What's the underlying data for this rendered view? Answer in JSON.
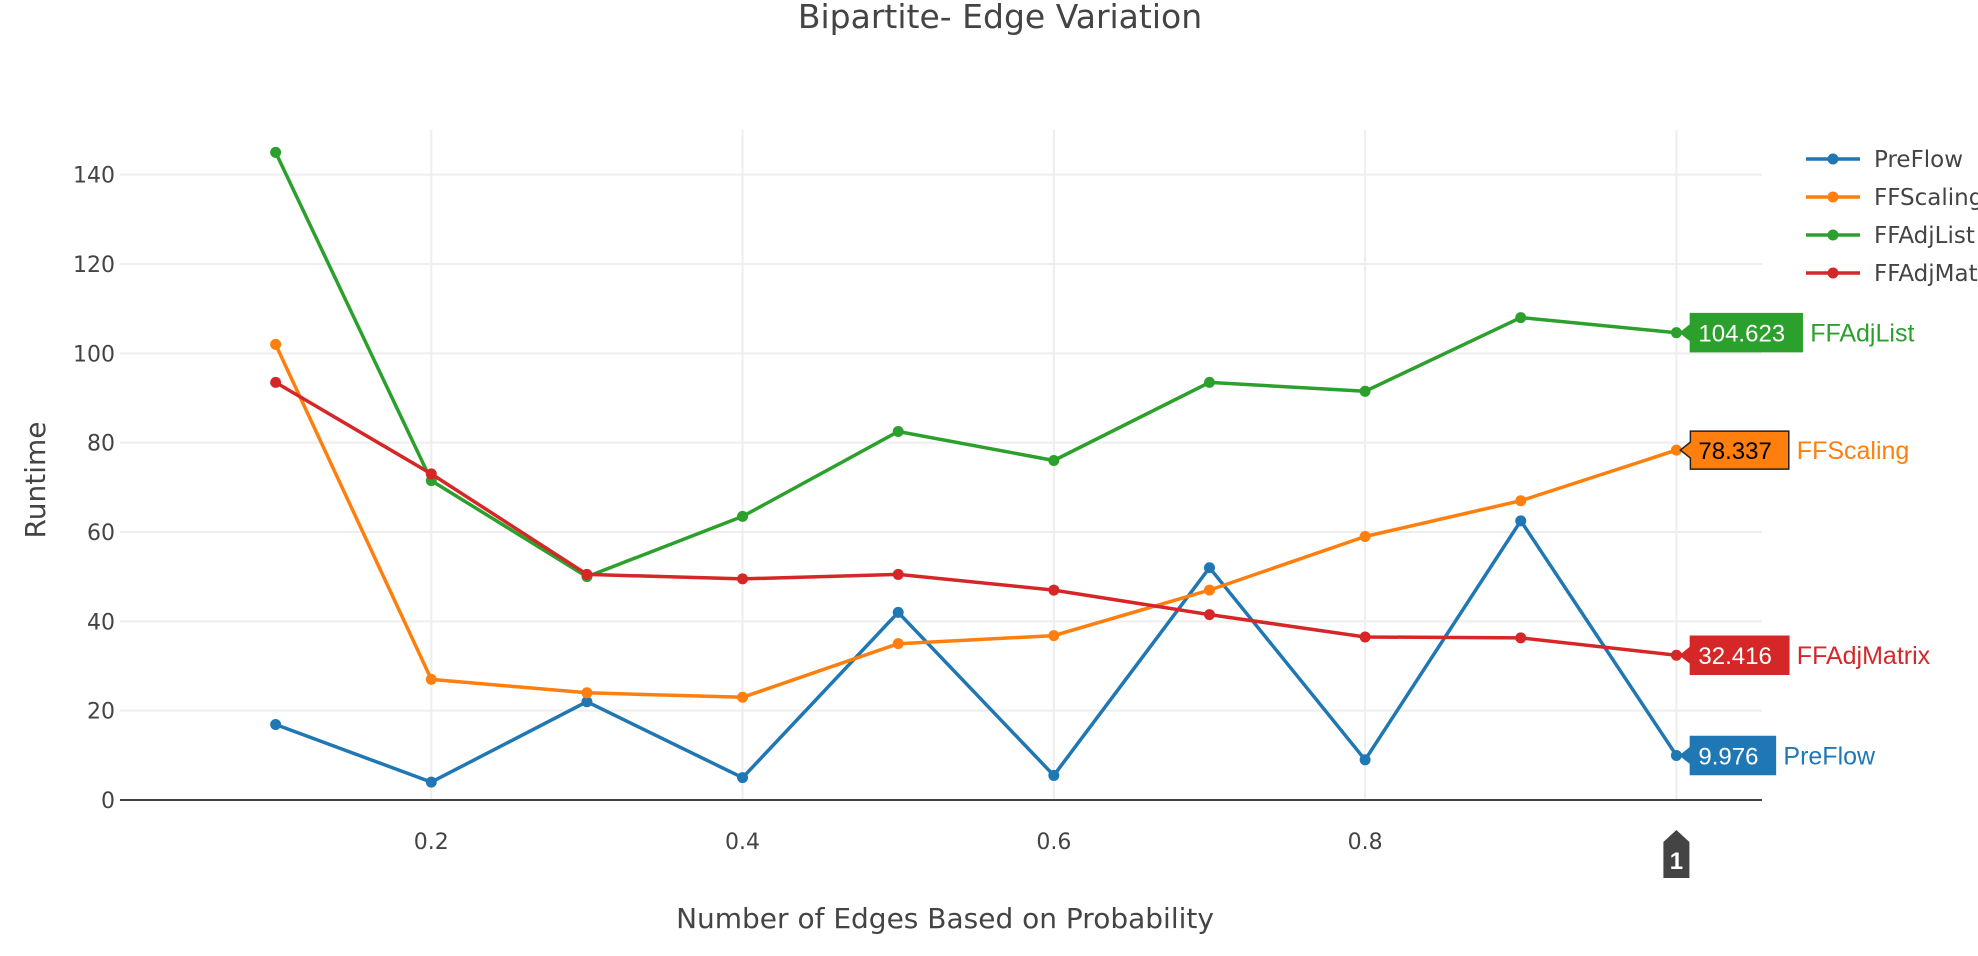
{
  "chart_data": {
    "type": "line",
    "title": "Bipartite- Edge Variation",
    "xlabel": "Number of Edges Based on Probability",
    "ylabel": "Runtime",
    "xlim": [
      0.0,
      1.055
    ],
    "ylim": [
      0,
      150
    ],
    "x": [
      0.1,
      0.2,
      0.3,
      0.4,
      0.5,
      0.6,
      0.7,
      0.8,
      0.9,
      1.0
    ],
    "x_ticks": [
      0.2,
      0.4,
      0.6,
      0.8
    ],
    "x_tick_labels": [
      "0.2",
      "0.4",
      "0.6",
      "0.8"
    ],
    "y_ticks": [
      0,
      20,
      40,
      60,
      80,
      100,
      120,
      140
    ],
    "y_tick_labels": [
      "0",
      "20",
      "40",
      "60",
      "80",
      "100",
      "120",
      "140"
    ],
    "grid": true,
    "legend_position": "top-right",
    "series": [
      {
        "name": "PreFlow",
        "color": "#1f77b4",
        "values": [
          16.9,
          4.0,
          22.0,
          5.0,
          42.0,
          5.5,
          52.0,
          9.0,
          62.5,
          9.976
        ]
      },
      {
        "name": "FFScaling",
        "color": "#ff7f0e",
        "values": [
          102.0,
          27.0,
          24.0,
          23.0,
          35.0,
          36.8,
          47.0,
          59.0,
          67.0,
          78.337
        ]
      },
      {
        "name": "FFAdjList",
        "color": "#2ca02c",
        "values": [
          145.0,
          71.5,
          50.0,
          63.5,
          82.5,
          76.0,
          93.5,
          91.5,
          108.0,
          104.623
        ]
      },
      {
        "name": "FFAdjMatrix",
        "color": "#d62728",
        "values": [
          93.5,
          73.0,
          50.5,
          49.5,
          50.5,
          47.0,
          41.5,
          36.5,
          36.3,
          32.416
        ]
      }
    ],
    "legend_entries": [
      "PreFlow",
      "FFScaling",
      "FFAdjList",
      "FFAdjMat"
    ],
    "hover": {
      "x_label": "1",
      "items": [
        {
          "series": "FFAdjList",
          "value_text": "104.623",
          "name_text": "FFAdjList",
          "value_color": "#ffffff"
        },
        {
          "series": "FFScaling",
          "value_text": "78.337",
          "name_text": "FFScaling",
          "value_color": "#000000"
        },
        {
          "series": "FFAdjMatrix",
          "value_text": "32.416",
          "name_text": "FFAdjMatrix",
          "value_color": "#ffffff"
        },
        {
          "series": "PreFlow",
          "value_text": "9.976",
          "name_text": "PreFlow",
          "value_color": "#ffffff"
        }
      ]
    }
  }
}
